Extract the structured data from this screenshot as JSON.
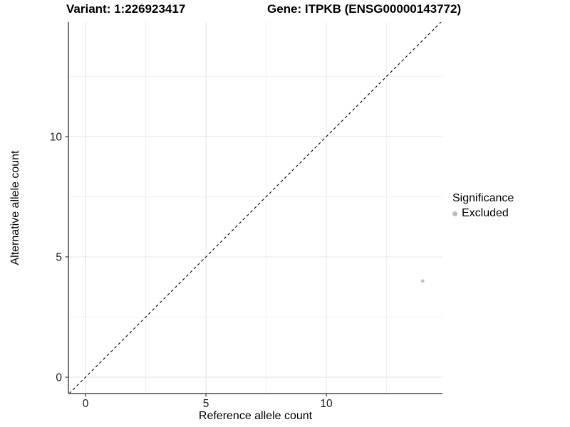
{
  "chart_data": {
    "type": "scatter",
    "title_left": "Variant: 1:226923417",
    "title_right": "Gene: ITPKB (ENSG00000143772)",
    "xlabel": "Reference allele count",
    "ylabel": "Alternative allele count",
    "xlim": [
      -0.71,
      14.82
    ],
    "ylim": [
      -0.68,
      14.76
    ],
    "x_ticks": [
      {
        "value": 0,
        "label": "0"
      },
      {
        "value": 5,
        "label": "5"
      },
      {
        "value": 10,
        "label": "10"
      }
    ],
    "y_ticks": [
      {
        "value": 0,
        "label": "0"
      },
      {
        "value": 5,
        "label": "5"
      },
      {
        "value": 10,
        "label": "10"
      }
    ],
    "x_minor": [
      2.5,
      7.5,
      12.5
    ],
    "y_minor": [
      2.5,
      7.5,
      12.5
    ],
    "grid": true,
    "legend_position": "right",
    "reference_line": {
      "type": "identity y=x",
      "style": "dashed",
      "color": "#000000"
    },
    "series": [
      {
        "name": "Excluded",
        "color": "#bdbdbd",
        "points": [
          {
            "x": 14,
            "y": 4
          }
        ]
      }
    ],
    "legend": {
      "title": "Significance",
      "items": [
        {
          "label": "Excluded",
          "color": "#bdbdbd"
        }
      ]
    }
  },
  "colors": {
    "axis_line": "#4d4d4d",
    "tick_mark": "#333333",
    "tick_label": "#1a1a1a",
    "grid_major": "#e3e3e3",
    "grid_minor": "#f0f0f0",
    "dashed_line": "#000000",
    "point": "#bdbdbd",
    "background": "#ffffff"
  }
}
